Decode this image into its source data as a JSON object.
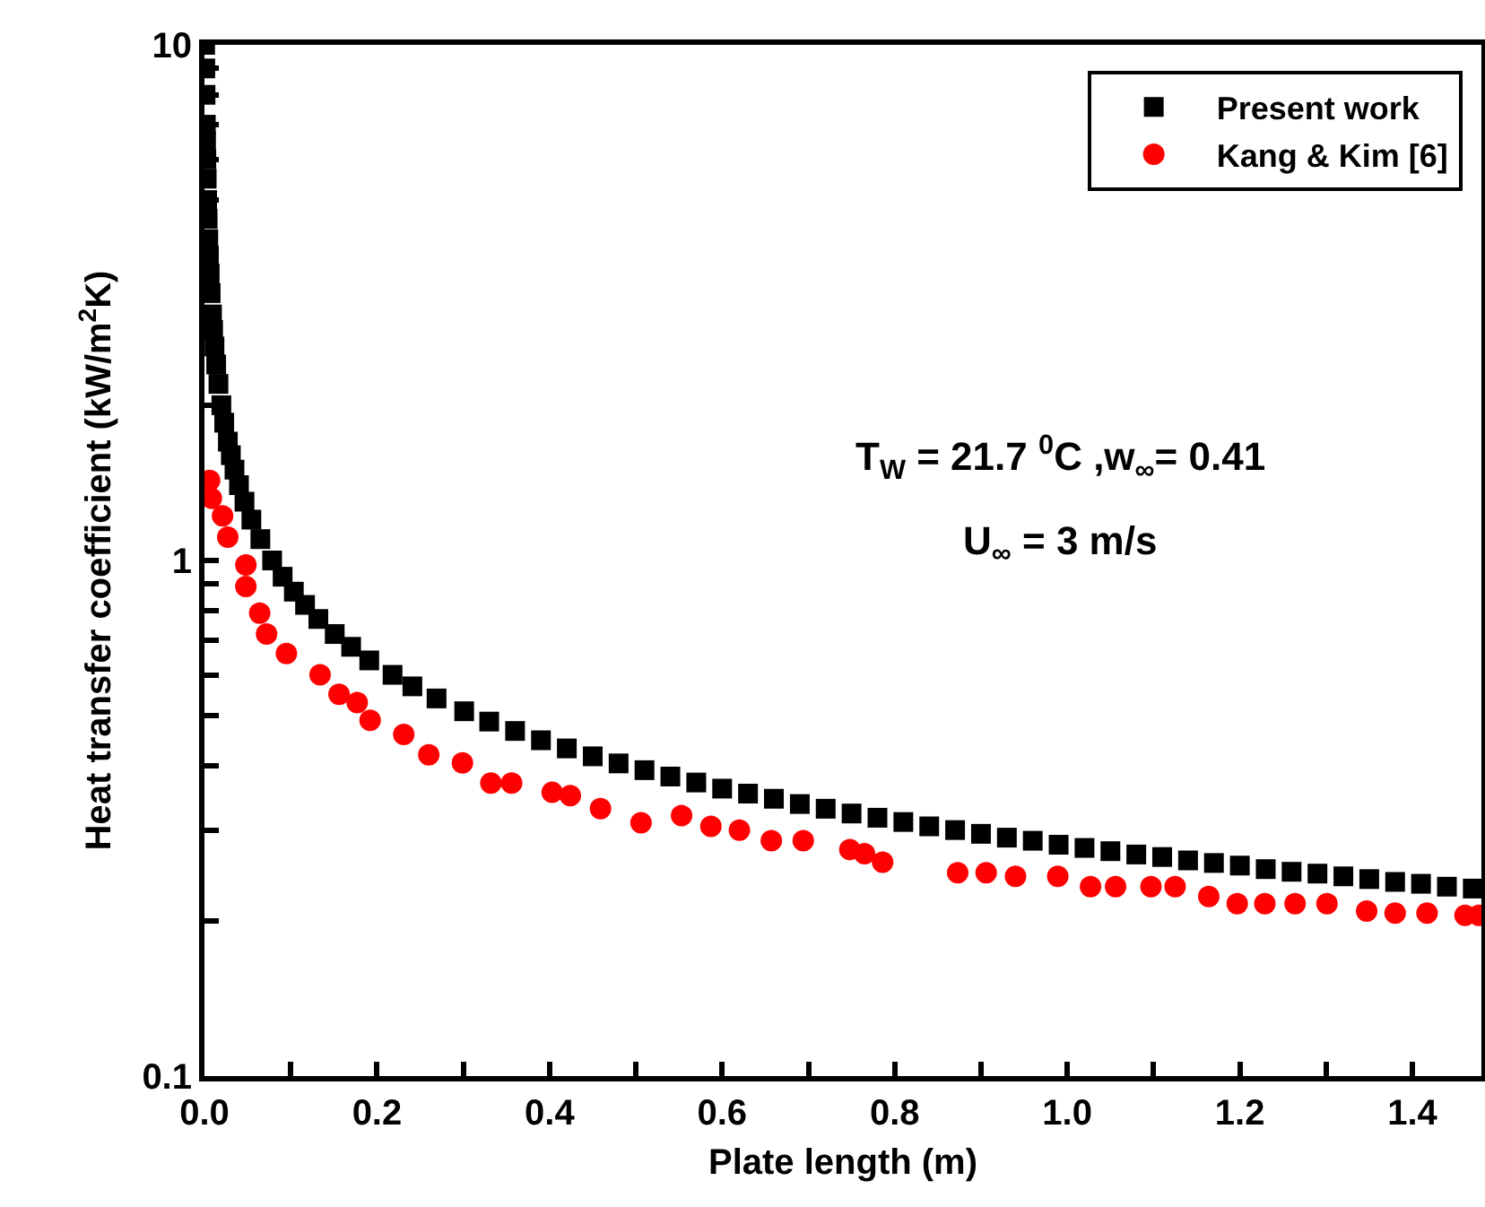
{
  "chart_data": {
    "type": "scatter",
    "xlabel": "Plate length (m)",
    "ylabel": "Heat transfer coefficient (kW/m$^{2}$K)",
    "log": "y",
    "xlim": [
      0,
      1.48
    ],
    "ylim": [
      0.1,
      10
    ],
    "xticks": [
      {
        "value": 0,
        "label": "0.0"
      },
      {
        "value": 0.1,
        "label": null
      },
      {
        "value": 0.2,
        "label": "0.2"
      },
      {
        "value": 0.3,
        "label": null
      },
      {
        "value": 0.4,
        "label": "0.4"
      },
      {
        "value": 0.5,
        "label": null
      },
      {
        "value": 0.6,
        "label": "0.6"
      },
      {
        "value": 0.7,
        "label": null
      },
      {
        "value": 0.8,
        "label": "0.8"
      },
      {
        "value": 0.9,
        "label": null
      },
      {
        "value": 1.0,
        "label": "1.0"
      },
      {
        "value": 1.1,
        "label": null
      },
      {
        "value": 1.2,
        "label": "1.2"
      },
      {
        "value": 1.3,
        "label": null
      },
      {
        "value": 1.4,
        "label": "1.4"
      }
    ],
    "yticks": [
      0.1,
      {
        "value": 0.2,
        "label": null
      },
      {
        "value": 0.3,
        "label": null
      },
      {
        "value": 0.4,
        "label": null
      },
      {
        "value": 0.5,
        "label": null
      },
      {
        "value": 0.6,
        "label": null
      },
      {
        "value": 0.7,
        "label": null
      },
      {
        "value": 0.8,
        "label": null
      },
      {
        "value": 0.9,
        "label": null
      },
      1,
      {
        "value": 2,
        "label": null
      },
      {
        "value": 3,
        "label": null
      },
      {
        "value": 4,
        "label": null
      },
      {
        "value": 5,
        "label": null
      },
      {
        "value": 6,
        "label": null
      },
      {
        "value": 7,
        "label": null
      },
      {
        "value": 8,
        "label": null
      },
      {
        "value": 9,
        "label": null
      },
      10
    ],
    "grid": false,
    "legend": "top right",
    "series": [
      {
        "name": "Present work",
        "color": "#000000",
        "marker": "square",
        "x": [
          0.00078,
          0.00097,
          0.00123,
          0.0016,
          0.00186,
          0.00218,
          0.00259,
          0.00314,
          0.0037,
          0.00444,
          0.00515,
          0.00605,
          0.0072,
          0.0087,
          0.01,
          0.0116,
          0.0136,
          0.0162,
          0.0196,
          0.0229,
          0.0271,
          0.0306,
          0.0348,
          0.04,
          0.0464,
          0.0544,
          0.0648,
          0.0784,
          0.0906,
          0.1036,
          0.1166,
          0.132,
          0.151,
          0.17,
          0.191,
          0.218,
          0.241,
          0.269,
          0.301,
          0.33,
          0.36,
          0.39,
          0.42,
          0.45,
          0.48,
          0.51,
          0.54,
          0.57,
          0.6,
          0.63,
          0.66,
          0.69,
          0.72,
          0.75,
          0.78,
          0.81,
          0.84,
          0.87,
          0.9,
          0.93,
          0.96,
          0.99,
          1.02,
          1.05,
          1.08,
          1.11,
          1.14,
          1.17,
          1.2,
          1.23,
          1.26,
          1.29,
          1.32,
          1.35,
          1.38,
          1.41,
          1.44,
          1.47
        ],
        "values": [
          10,
          9,
          8,
          7,
          6.5,
          6,
          5.5,
          5,
          4.6,
          4.2,
          3.9,
          3.6,
          3.3,
          3.0,
          2.8,
          2.6,
          2.4,
          2.2,
          2.0,
          1.85,
          1.7,
          1.6,
          1.5,
          1.4,
          1.3,
          1.2,
          1.1,
          1.0,
          0.93,
          0.87,
          0.82,
          0.77,
          0.72,
          0.68,
          0.64,
          0.6,
          0.57,
          0.54,
          0.51,
          0.487,
          0.467,
          0.448,
          0.432,
          0.417,
          0.404,
          0.392,
          0.381,
          0.371,
          0.361,
          0.353,
          0.345,
          0.337,
          0.33,
          0.323,
          0.317,
          0.311,
          0.305,
          0.3,
          0.295,
          0.29,
          0.286,
          0.281,
          0.277,
          0.273,
          0.269,
          0.266,
          0.262,
          0.259,
          0.256,
          0.252,
          0.249,
          0.247,
          0.244,
          0.241,
          0.238,
          0.236,
          0.233,
          0.231
        ]
      },
      {
        "name": "Kang & Kim [6]",
        "color": "#ff0000",
        "marker": "circle",
        "x": [
          0.006,
          0.008,
          0.021,
          0.027,
          0.048,
          0.048,
          0.064,
          0.072,
          0.095,
          0.134,
          0.156,
          0.177,
          0.192,
          0.231,
          0.26,
          0.299,
          0.332,
          0.356,
          0.403,
          0.424,
          0.459,
          0.506,
          0.553,
          0.587,
          0.62,
          0.657,
          0.694,
          0.748,
          0.765,
          0.786,
          0.873,
          0.906,
          0.94,
          0.989,
          1.027,
          1.056,
          1.097,
          1.125,
          1.164,
          1.197,
          1.229,
          1.264,
          1.301,
          1.347,
          1.38,
          1.417,
          1.461,
          1.477
        ],
        "values": [
          1.43,
          1.32,
          1.22,
          1.11,
          0.98,
          0.89,
          0.79,
          0.72,
          0.66,
          0.6,
          0.55,
          0.53,
          0.49,
          0.46,
          0.42,
          0.405,
          0.37,
          0.37,
          0.355,
          0.35,
          0.33,
          0.31,
          0.32,
          0.305,
          0.3,
          0.286,
          0.286,
          0.275,
          0.27,
          0.26,
          0.248,
          0.248,
          0.244,
          0.244,
          0.233,
          0.233,
          0.233,
          0.233,
          0.223,
          0.216,
          0.216,
          0.216,
          0.216,
          0.209,
          0.207,
          0.207,
          0.205,
          0.205
        ]
      }
    ],
    "annotations": [
      "T$_{W}$ = 21.7 $^{0}$C ,w$_{∞}$= 0.41",
      "U$_{∞}$ = 3 m/s"
    ]
  }
}
